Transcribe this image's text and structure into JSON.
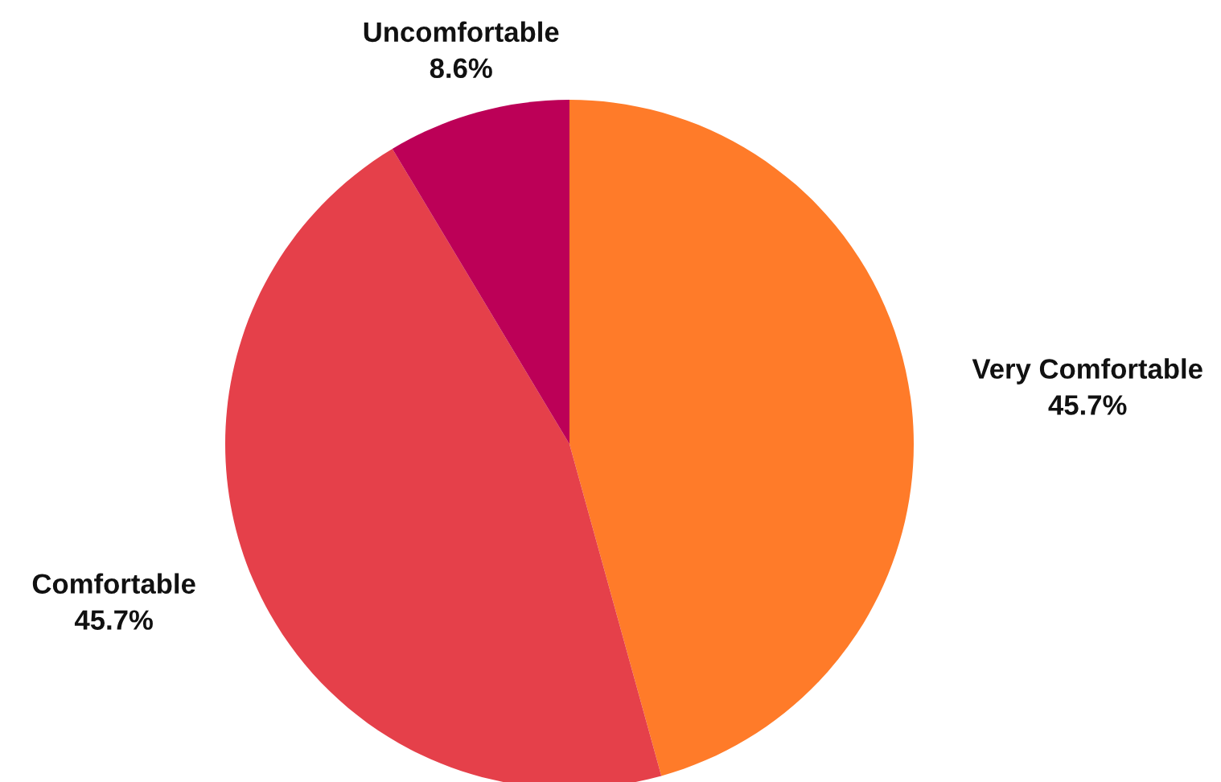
{
  "chart_data": {
    "type": "pie",
    "categories": [
      "Very Comfortable",
      "Comfortable",
      "Uncomfortable"
    ],
    "values": [
      45.7,
      45.7,
      8.6
    ],
    "value_labels": [
      "45.7%",
      "45.7%",
      "8.6%"
    ],
    "colors": [
      "#ff7b29",
      "#e5404a",
      "#bc0057"
    ]
  }
}
